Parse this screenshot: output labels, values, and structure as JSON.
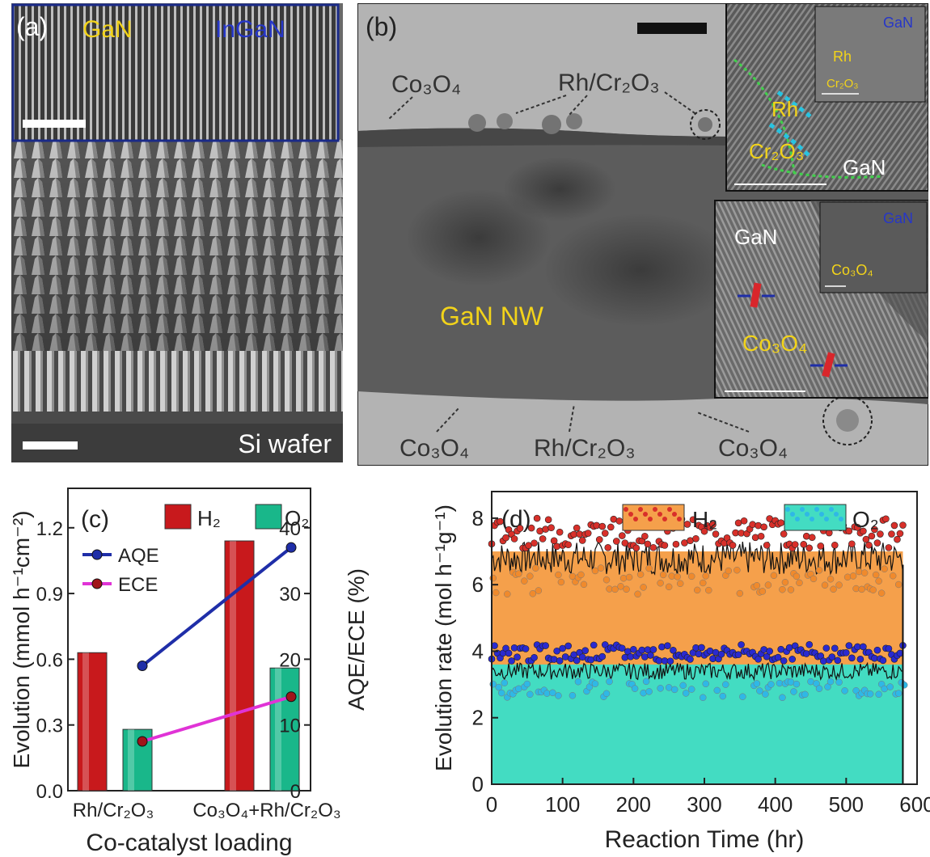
{
  "figure": {
    "a": {
      "label": "(a)",
      "inset_left": "GaN",
      "inset_right": "InGaN",
      "substrate": "Si wafer"
    },
    "b": {
      "label": "(b)",
      "nw": "GaN NW",
      "co3o4": "Co₃O₄",
      "rhcr": "Rh/Cr₂O₃",
      "inset1": {
        "rh": "Rh",
        "cr2o3": "Cr₂O₃",
        "gan": "GaN"
      },
      "inset1_small": {
        "gan": "GaN",
        "rh": "Rh",
        "cr2o3": "Cr₂O₃"
      },
      "inset2": {
        "gan": "GaN",
        "co3o4": "Co₃O₄"
      },
      "inset2_small": {
        "gan": "GaN",
        "co3o4": "Co₃O₄"
      }
    }
  },
  "chart_data": [
    {
      "panel": "(c)",
      "type": "bar",
      "categories": [
        "Rh/Cr₂O₃",
        "Co₃O₄+Rh/Cr₂O₃"
      ],
      "series": [
        {
          "name": "H₂",
          "axis": "left",
          "values": [
            0.63,
            1.14
          ],
          "color": "#c8191c"
        },
        {
          "name": "O₂",
          "axis": "left",
          "values": [
            0.28,
            0.56
          ],
          "color": "#19b78a"
        }
      ],
      "line_series": [
        {
          "name": "AQE",
          "axis": "right",
          "values": [
            19,
            37
          ],
          "color": "#1f2ea8"
        },
        {
          "name": "ECE",
          "axis": "right",
          "values": [
            7.5,
            14.3
          ],
          "color": "#e033d6"
        }
      ],
      "xlabel": "Co-catalyst loading",
      "ylabel": "Evolution (mmol h⁻¹cm⁻²)",
      "y2label": "AQE/ECE (%)",
      "ylim": [
        0,
        1.38
      ],
      "y2lim": [
        0,
        46
      ],
      "yticks": [
        "0.0",
        "0.3",
        "0.6",
        "0.9",
        "1.2"
      ],
      "y2ticks": [
        "0",
        "10",
        "20",
        "30",
        "40"
      ]
    },
    {
      "panel": "(d)",
      "type": "area",
      "series": [
        {
          "name": "H₂",
          "mean": 6.8,
          "color": "#f5a04b",
          "point_color": "#d8302a"
        },
        {
          "name": "O₂",
          "mean": 3.4,
          "color": "#43dcc2",
          "point_color": "#2a2ad0"
        }
      ],
      "xlabel": "Reaction Time (hr)",
      "ylabel": "Evolution rate (mol h⁻¹g⁻¹)",
      "xlim": [
        0,
        600
      ],
      "ylim": [
        0,
        8.8
      ],
      "xticks": [
        "0",
        "100",
        "200",
        "300",
        "400",
        "500",
        "600"
      ],
      "yticks": [
        "0",
        "2",
        "4",
        "6",
        "8"
      ],
      "x_end": 580
    }
  ]
}
